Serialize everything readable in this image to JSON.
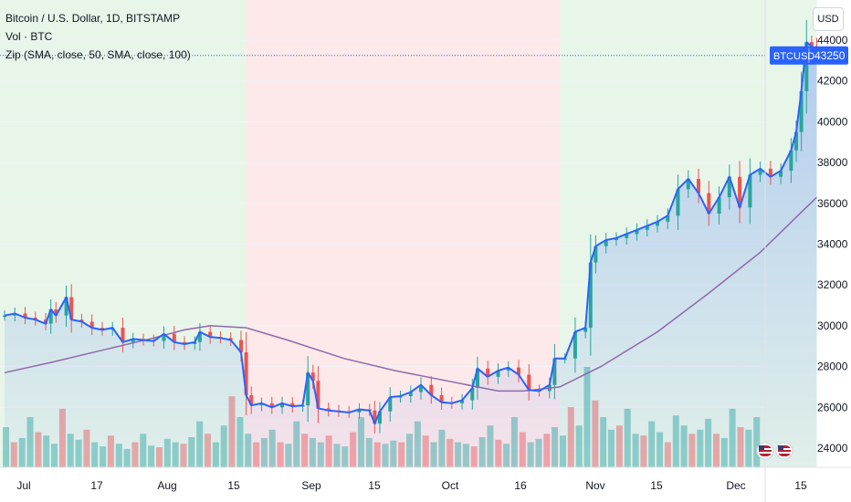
{
  "legend": {
    "symbol_line": "Bitcoin / U.S. Dollar, 1D, BITSTAMP",
    "volume_line": "Vol · BTC",
    "zip_line": "Zip (SMA, close, 50, SMA, close, 100)"
  },
  "currency_button": "USD",
  "price_tag": {
    "symbol": "BTCUSD",
    "value": "43250"
  },
  "colors": {
    "up": "#26a69a",
    "down": "#ef5350",
    "line": "#2962ff",
    "sma": "#8e6aa8",
    "zone_green": "#e8f5e9",
    "zone_red": "#fde9e9",
    "tag_bg": "#2962ff"
  },
  "chart_data": {
    "type": "line",
    "x_tick_labels": [
      "Jul",
      "17",
      "Aug",
      "15",
      "Sep",
      "15",
      "Oct",
      "16",
      "Nov",
      "15",
      "Dec",
      "15"
    ],
    "y_ticks": [
      24000,
      26000,
      28000,
      30000,
      32000,
      34000,
      36000,
      38000,
      40000,
      42000,
      44000
    ],
    "ylim": [
      23000,
      45200
    ],
    "last_price": 43250,
    "zones": [
      {
        "start": "Jul 1",
        "end": "Aug 17",
        "sentiment": "bullish"
      },
      {
        "start": "Aug 17",
        "end": "Oct 17",
        "sentiment": "bearish"
      },
      {
        "start": "Oct 17",
        "end": "Dec 6",
        "sentiment": "bullish"
      }
    ],
    "close_series": {
      "name": "BTCUSD",
      "points": [
        [
          "Jul 1",
          30500
        ],
        [
          "Jul 3",
          30600
        ],
        [
          "Jul 5",
          30400
        ],
        [
          "Jul 7",
          30300
        ],
        [
          "Jul 9",
          30100
        ],
        [
          "Jul 10",
          30800
        ],
        [
          "Jul 11",
          30500
        ],
        [
          "Jul 13",
          31400
        ],
        [
          "Jul 14",
          30300
        ],
        [
          "Jul 16",
          30200
        ],
        [
          "Jul 18",
          29900
        ],
        [
          "Jul 20",
          29800
        ],
        [
          "Jul 22",
          29900
        ],
        [
          "Jul 24",
          29200
        ],
        [
          "Jul 26",
          29350
        ],
        [
          "Jul 28",
          29300
        ],
        [
          "Jul 30",
          29250
        ],
        [
          "Aug 1",
          29600
        ],
        [
          "Aug 3",
          29200
        ],
        [
          "Aug 5",
          29100
        ],
        [
          "Aug 7",
          29200
        ],
        [
          "Aug 8",
          29700
        ],
        [
          "Aug 10",
          29450
        ],
        [
          "Aug 12",
          29400
        ],
        [
          "Aug 14",
          29300
        ],
        [
          "Aug 16",
          28700
        ],
        [
          "Aug 17",
          26600
        ],
        [
          "Aug 18",
          26100
        ],
        [
          "Aug 20",
          26200
        ],
        [
          "Aug 22",
          26000
        ],
        [
          "Aug 24",
          26200
        ],
        [
          "Aug 26",
          26050
        ],
        [
          "Aug 28",
          26100
        ],
        [
          "Aug 29",
          27700
        ],
        [
          "Aug 30",
          27300
        ],
        [
          "Aug 31",
          25950
        ],
        [
          "Sep 2",
          25850
        ],
        [
          "Sep 4",
          25800
        ],
        [
          "Sep 6",
          25750
        ],
        [
          "Sep 8",
          25900
        ],
        [
          "Sep 10",
          25850
        ],
        [
          "Sep 11",
          25200
        ],
        [
          "Sep 12",
          25800
        ],
        [
          "Sep 14",
          26500
        ],
        [
          "Sep 16",
          26550
        ],
        [
          "Sep 18",
          26750
        ],
        [
          "Sep 20",
          27100
        ],
        [
          "Sep 22",
          26600
        ],
        [
          "Sep 24",
          26250
        ],
        [
          "Sep 26",
          26200
        ],
        [
          "Sep 28",
          26350
        ],
        [
          "Sep 30",
          26950
        ],
        [
          "Oct 1",
          27900
        ],
        [
          "Oct 3",
          27500
        ],
        [
          "Oct 5",
          27800
        ],
        [
          "Oct 7",
          27950
        ],
        [
          "Oct 9",
          27600
        ],
        [
          "Oct 11",
          26850
        ],
        [
          "Oct 13",
          26800
        ],
        [
          "Oct 15",
          27100
        ],
        [
          "Oct 16",
          28400
        ],
        [
          "Oct 18",
          28400
        ],
        [
          "Oct 20",
          29700
        ],
        [
          "Oct 22",
          29900
        ],
        [
          "Oct 23",
          33100
        ],
        [
          "Oct 24",
          33900
        ],
        [
          "Oct 26",
          34200
        ],
        [
          "Oct 28",
          34300
        ],
        [
          "Oct 30",
          34500
        ],
        [
          "Nov 1",
          34700
        ],
        [
          "Nov 3",
          34900
        ],
        [
          "Nov 5",
          35100
        ],
        [
          "Nov 7",
          35400
        ],
        [
          "Nov 9",
          36700
        ],
        [
          "Nov 11",
          37200
        ],
        [
          "Nov 13",
          36500
        ],
        [
          "Nov 15",
          35500
        ],
        [
          "Nov 17",
          36300
        ],
        [
          "Nov 19",
          37300
        ],
        [
          "Nov 21",
          35800
        ],
        [
          "Nov 23",
          37400
        ],
        [
          "Nov 25",
          37700
        ],
        [
          "Nov 27",
          37300
        ],
        [
          "Nov 29",
          37600
        ],
        [
          "Dec 1",
          38600
        ],
        [
          "Dec 2",
          39500
        ],
        [
          "Dec 3",
          41500
        ],
        [
          "Dec 4",
          43900
        ],
        [
          "Dec 5",
          43700
        ],
        [
          "Dec 6",
          43250
        ]
      ]
    },
    "sma_series": {
      "name": "Zip (SMA, close, 50, SMA, close, 100)",
      "points": [
        [
          "Jul 1",
          27700
        ],
        [
          "Jul 10",
          28200
        ],
        [
          "Jul 20",
          28800
        ],
        [
          "Jul 30",
          29400
        ],
        [
          "Aug 5",
          29800
        ],
        [
          "Aug 10",
          30000
        ],
        [
          "Aug 17",
          29900
        ],
        [
          "Aug 25",
          29300
        ],
        [
          "Sep 5",
          28400
        ],
        [
          "Sep 15",
          27800
        ],
        [
          "Sep 25",
          27300
        ],
        [
          "Oct 5",
          26800
        ],
        [
          "Oct 10",
          26800
        ],
        [
          "Oct 17",
          27000
        ],
        [
          "Oct 25",
          28000
        ],
        [
          "Nov 5",
          29700
        ],
        [
          "Nov 15",
          31600
        ],
        [
          "Nov 25",
          33600
        ],
        [
          "Dec 6",
          36300
        ]
      ]
    },
    "volume_series": {
      "name": "Vol · BTC",
      "values": [
        48,
        30,
        35,
        60,
        42,
        38,
        28,
        70,
        40,
        33,
        45,
        30,
        25,
        38,
        28,
        22,
        30,
        40,
        26,
        24,
        34,
        30,
        28,
        36,
        55,
        40,
        30,
        50,
        85,
        60,
        40,
        30,
        35,
        45,
        30,
        28,
        55,
        40,
        35,
        30,
        38,
        28,
        25,
        42,
        60,
        35,
        30,
        28,
        32,
        30,
        40,
        55,
        38,
        30,
        45,
        34,
        30,
        28,
        25,
        36,
        50,
        33,
        28,
        60,
        42,
        30,
        34,
        40,
        48,
        38,
        72,
        50,
        120,
        80,
        60,
        45,
        50,
        70,
        40,
        38,
        55,
        42,
        30,
        62,
        50,
        40,
        45,
        58,
        40,
        35,
        70,
        48,
        45,
        60
      ]
    }
  }
}
